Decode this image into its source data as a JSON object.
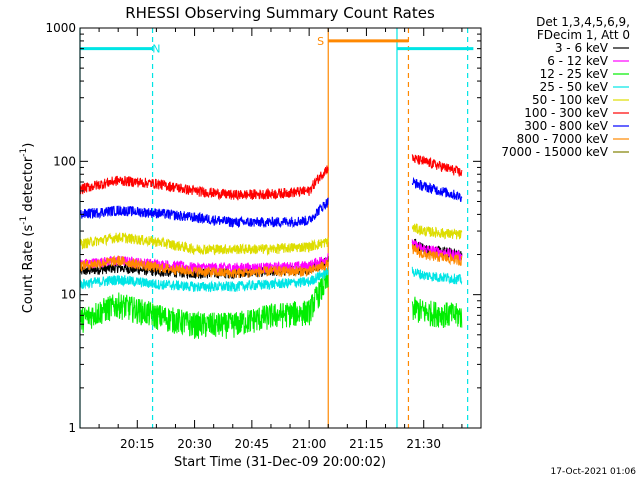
{
  "chart_data": {
    "type": "line",
    "title": "RHESSI Observing Summary Count Rates",
    "xlabel": "Start Time (31-Dec-09 20:00:02)",
    "ylabel_parts": {
      "main": "Count Rate (s",
      "sup1": "-1",
      "mid": " detector",
      "sup2": "-1",
      "end": ")"
    },
    "y_scale": "log",
    "ylim": [
      1,
      1000
    ],
    "xlim_minutes": [
      0,
      105
    ],
    "y_ticks": [
      {
        "value": 1,
        "label": "1"
      },
      {
        "value": 10,
        "label": "10"
      },
      {
        "value": 100,
        "label": "100"
      },
      {
        "value": 1000,
        "label": "1000"
      }
    ],
    "x_ticks": [
      {
        "minute": 15,
        "label": "20:15"
      },
      {
        "minute": 30,
        "label": "20:30"
      },
      {
        "minute": 45,
        "label": "20:45"
      },
      {
        "minute": 60,
        "label": "21:00"
      },
      {
        "minute": 75,
        "label": "21:15"
      },
      {
        "minute": 90,
        "label": "21:30"
      }
    ],
    "legend_header": [
      "Det 1,3,4,5,6,9,",
      "FDecim 1, Att 0"
    ],
    "legend_placement": "right",
    "gaps_minutes": [
      [
        65,
        87
      ]
    ],
    "series": [
      {
        "name": "3 - 6 keV",
        "color": "#000000",
        "values": [
          [
            0,
            15
          ],
          [
            10,
            16
          ],
          [
            20,
            15
          ],
          [
            30,
            14.5
          ],
          [
            40,
            14.5
          ],
          [
            50,
            15
          ],
          [
            60,
            15.5
          ],
          [
            65,
            18
          ],
          [
            87,
            25
          ],
          [
            90,
            22
          ],
          [
            100,
            20
          ]
        ]
      },
      {
        "name": "6 - 12 keV",
        "color": "#ff00ff",
        "values": [
          [
            0,
            17
          ],
          [
            10,
            18
          ],
          [
            20,
            17
          ],
          [
            30,
            16
          ],
          [
            40,
            16
          ],
          [
            50,
            16
          ],
          [
            60,
            16.5
          ],
          [
            65,
            19
          ],
          [
            87,
            24
          ],
          [
            90,
            22
          ],
          [
            100,
            19.5
          ]
        ]
      },
      {
        "name": "12 - 25 keV",
        "color": "#00ee00",
        "values": [
          [
            0,
            6.5
          ],
          [
            10,
            8.5
          ],
          [
            20,
            7
          ],
          [
            30,
            6
          ],
          [
            40,
            6
          ],
          [
            50,
            7
          ],
          [
            60,
            7.5
          ],
          [
            65,
            13
          ],
          [
            87,
            8
          ],
          [
            90,
            7.5
          ],
          [
            100,
            7
          ]
        ]
      },
      {
        "name": "25 - 50 keV",
        "color": "#00e5e5",
        "values": [
          [
            0,
            12
          ],
          [
            10,
            13
          ],
          [
            20,
            12
          ],
          [
            30,
            11.5
          ],
          [
            40,
            11.5
          ],
          [
            50,
            12
          ],
          [
            60,
            12.5
          ],
          [
            65,
            15
          ],
          [
            87,
            15
          ],
          [
            90,
            14
          ],
          [
            100,
            13
          ]
        ]
      },
      {
        "name": "50 - 100 keV",
        "color": "#dddd00",
        "values": [
          [
            0,
            24
          ],
          [
            10,
            27
          ],
          [
            20,
            25
          ],
          [
            30,
            22
          ],
          [
            40,
            22
          ],
          [
            50,
            22
          ],
          [
            60,
            23
          ],
          [
            65,
            25
          ],
          [
            87,
            32
          ],
          [
            90,
            30
          ],
          [
            100,
            28
          ]
        ]
      },
      {
        "name": "100 - 300 keV",
        "color": "#ff0000",
        "values": [
          [
            0,
            62
          ],
          [
            10,
            72
          ],
          [
            20,
            68
          ],
          [
            30,
            60
          ],
          [
            40,
            56
          ],
          [
            50,
            57
          ],
          [
            60,
            60
          ],
          [
            65,
            90
          ],
          [
            87,
            105
          ],
          [
            90,
            100
          ],
          [
            100,
            82
          ]
        ]
      },
      {
        "name": "300 - 800 keV",
        "color": "#0000ff",
        "values": [
          [
            0,
            40
          ],
          [
            10,
            43
          ],
          [
            20,
            41
          ],
          [
            30,
            38
          ],
          [
            40,
            35
          ],
          [
            50,
            35
          ],
          [
            60,
            36
          ],
          [
            65,
            50
          ],
          [
            87,
            70
          ],
          [
            90,
            65
          ],
          [
            100,
            54
          ]
        ]
      },
      {
        "name": "800 - 7000 keV",
        "color": "#ff8800",
        "values": [
          [
            0,
            16.5
          ],
          [
            10,
            18
          ],
          [
            20,
            16
          ],
          [
            30,
            15
          ],
          [
            40,
            14.5
          ],
          [
            50,
            15
          ],
          [
            60,
            15
          ],
          [
            65,
            17
          ],
          [
            87,
            22
          ],
          [
            90,
            20
          ],
          [
            100,
            18
          ]
        ]
      },
      {
        "name": "7000 - 15000 keV",
        "color": "#808000",
        "values": []
      }
    ],
    "annotations": [
      {
        "label": "N",
        "kind": "night",
        "color": "#00e5e5",
        "level": 700,
        "intervals": [
          [
            0,
            19
          ],
          [
            83,
            103
          ]
        ],
        "label_minute": 20
      },
      {
        "label": "S",
        "kind": "saa",
        "color": "#ff8800",
        "level": 800,
        "intervals": [
          [
            65,
            86
          ]
        ],
        "label_minute": 63
      }
    ],
    "vertical_markers": [
      {
        "minute": 0,
        "color": "#00e5e5",
        "style": "solid"
      },
      {
        "minute": 19,
        "color": "#00e5e5",
        "style": "dashed"
      },
      {
        "minute": 65,
        "color": "#ff8800",
        "style": "solid"
      },
      {
        "minute": 83,
        "color": "#00e5e5",
        "style": "solid"
      },
      {
        "minute": 86,
        "color": "#ff8800",
        "style": "dashed"
      },
      {
        "minute": 101.5,
        "color": "#00e5e5",
        "style": "dashed"
      }
    ]
  },
  "footer": {
    "timestamp": "17-Oct-2021 01:06"
  }
}
